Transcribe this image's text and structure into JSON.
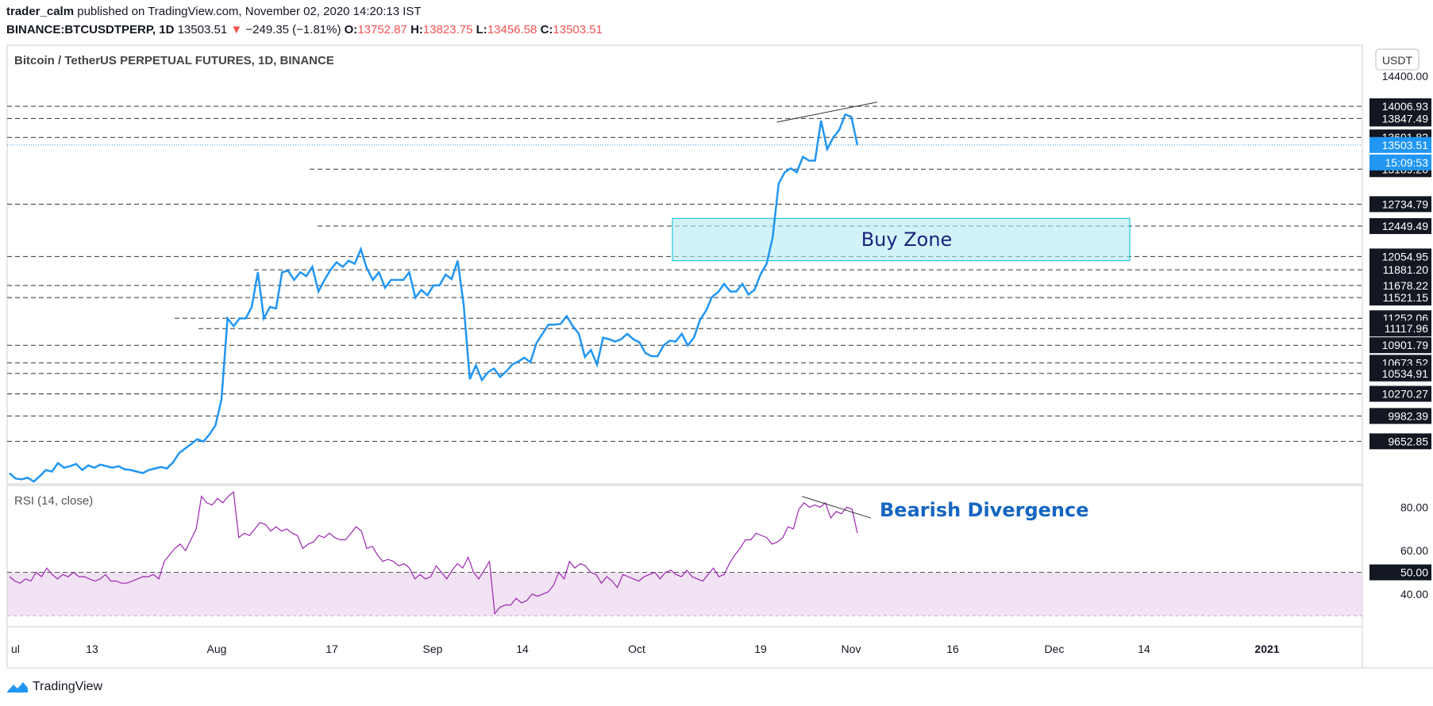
{
  "header": {
    "author": "trader_calm",
    "published": "published on TradingView.com, November 02, 2020 14:20:13 IST",
    "symbol": "BINANCE:BTCUSDTPERP, 1D",
    "last": "13503.51",
    "change_arrow": "▼",
    "change": "−249.35 (−1.81%)",
    "open_label": "O:",
    "open": "13752.87",
    "high_label": "H:",
    "high": "13823.75",
    "low_label": "L:",
    "low": "13456.58",
    "close_label": "C:",
    "close": "13503.51"
  },
  "brand": {
    "name": "TradingView",
    "icon": "tradingview-logo-icon"
  },
  "colors": {
    "price": "#2196f3",
    "rsi": "#9c27b0",
    "buy_zone": "#00bcd4",
    "divergence_text": "#1565c0",
    "dashed": "#333333"
  },
  "chart_data": [
    {
      "type": "line",
      "title": "Bitcoin / TetherUS PERPETUAL FUTURES, 1D, BINANCE",
      "currency": "USDT",
      "x_ticks": [
        "ul",
        "13",
        "Aug",
        "17",
        "Sep",
        "14",
        "Oct",
        "19",
        "Nov",
        "16",
        "Dec",
        "14",
        "2021"
      ],
      "y_tick": "14400.00",
      "ylim": [
        9100,
        14800
      ],
      "last_price": "13503.51",
      "countdown": "15:09:53",
      "levels": [
        "14006.93",
        "13847.49",
        "13601.82",
        "13189.20",
        "12734.79",
        "12449.49",
        "12054.95",
        "11881.20",
        "11678.22",
        "11521.15",
        "11252.06",
        "11117.96",
        "10901.79",
        "10673.52",
        "10534.91",
        "10270.27",
        "9982.39",
        "9652.85"
      ],
      "annotations": {
        "buy_zone": {
          "label": "Buy Zone",
          "range": [
            12000,
            12550
          ]
        }
      },
      "series": [
        {
          "values": [
            9240,
            9170,
            9160,
            9180,
            9130,
            9200,
            9280,
            9260,
            9370,
            9310,
            9330,
            9360,
            9280,
            9340,
            9310,
            9350,
            9330,
            9310,
            9330,
            9290,
            9280,
            9260,
            9240,
            9280,
            9300,
            9320,
            9300,
            9380,
            9500,
            9560,
            9620,
            9680,
            9650,
            9740,
            9860,
            10200,
            11250,
            11150,
            11250,
            11250,
            11400,
            11850,
            11250,
            11400,
            11380,
            11850,
            11870,
            11750,
            11850,
            11800,
            11920,
            11600,
            11750,
            11880,
            11980,
            11920,
            12000,
            11960,
            12150,
            11900,
            11750,
            11850,
            11650,
            11750,
            11750,
            11750,
            11850,
            11520,
            11620,
            11550,
            11680,
            11680,
            11820,
            11760,
            12000,
            11420,
            10460,
            10640,
            10450,
            10550,
            10600,
            10490,
            10560,
            10650,
            10690,
            10740,
            10680,
            10930,
            11050,
            11170,
            11170,
            11180,
            11280,
            11150,
            11050,
            10750,
            10840,
            10650,
            11000,
            10980,
            10950,
            10980,
            11050,
            10980,
            10940,
            10800,
            10760,
            10760,
            10900,
            10960,
            10950,
            11050,
            10900,
            11000,
            11230,
            11350,
            11530,
            11590,
            11700,
            11600,
            11600,
            11700,
            11560,
            11620,
            11820,
            11960,
            12300,
            13000,
            13150,
            13200,
            13150,
            13350,
            13300,
            13300,
            13820,
            13450,
            13600,
            13700,
            13900,
            13870,
            13500
          ]
        }
      ],
      "trendline_note": "rising highs"
    },
    {
      "type": "line",
      "title": "RSI (14, close)",
      "y_ticks": [
        "80.00",
        "60.00",
        "50.00",
        "40.00"
      ],
      "ylim": [
        25,
        90
      ],
      "band": [
        30,
        50
      ],
      "annotations": {
        "divergence": "Bearish Divergence"
      },
      "series": [
        {
          "values": [
            48,
            46,
            45,
            47,
            46,
            50,
            48,
            52,
            49,
            47,
            49,
            48,
            50,
            48,
            48,
            47,
            46,
            47,
            49,
            46,
            46,
            45,
            45,
            46,
            47,
            48,
            48,
            49,
            47,
            55,
            58,
            61,
            63,
            60,
            65,
            70,
            85,
            82,
            81,
            84,
            82,
            85,
            87,
            66,
            68,
            67,
            70,
            73,
            72,
            69,
            71,
            69,
            70,
            68,
            67,
            61,
            63,
            64,
            67,
            66,
            68,
            66,
            65,
            65,
            68,
            71,
            69,
            61,
            62,
            58,
            55,
            56,
            55,
            53,
            54,
            52,
            47,
            49,
            47,
            48,
            53,
            50,
            47,
            51,
            54,
            52,
            57,
            50,
            47,
            51,
            55,
            31,
            34,
            35,
            35,
            38,
            36,
            37,
            40,
            39,
            40,
            41,
            44,
            50,
            47,
            55,
            52,
            54,
            53,
            50,
            49,
            45,
            48,
            46,
            43,
            49,
            48,
            47,
            46,
            48,
            49,
            50,
            47,
            50,
            51,
            49,
            48,
            51,
            48,
            47,
            46,
            49,
            52,
            48,
            49,
            54,
            58,
            61,
            65,
            65,
            68,
            67,
            66,
            63,
            64,
            66,
            71,
            70,
            79,
            82,
            80,
            81,
            80,
            82,
            75,
            78,
            77,
            80,
            79,
            68
          ]
        }
      ]
    }
  ]
}
